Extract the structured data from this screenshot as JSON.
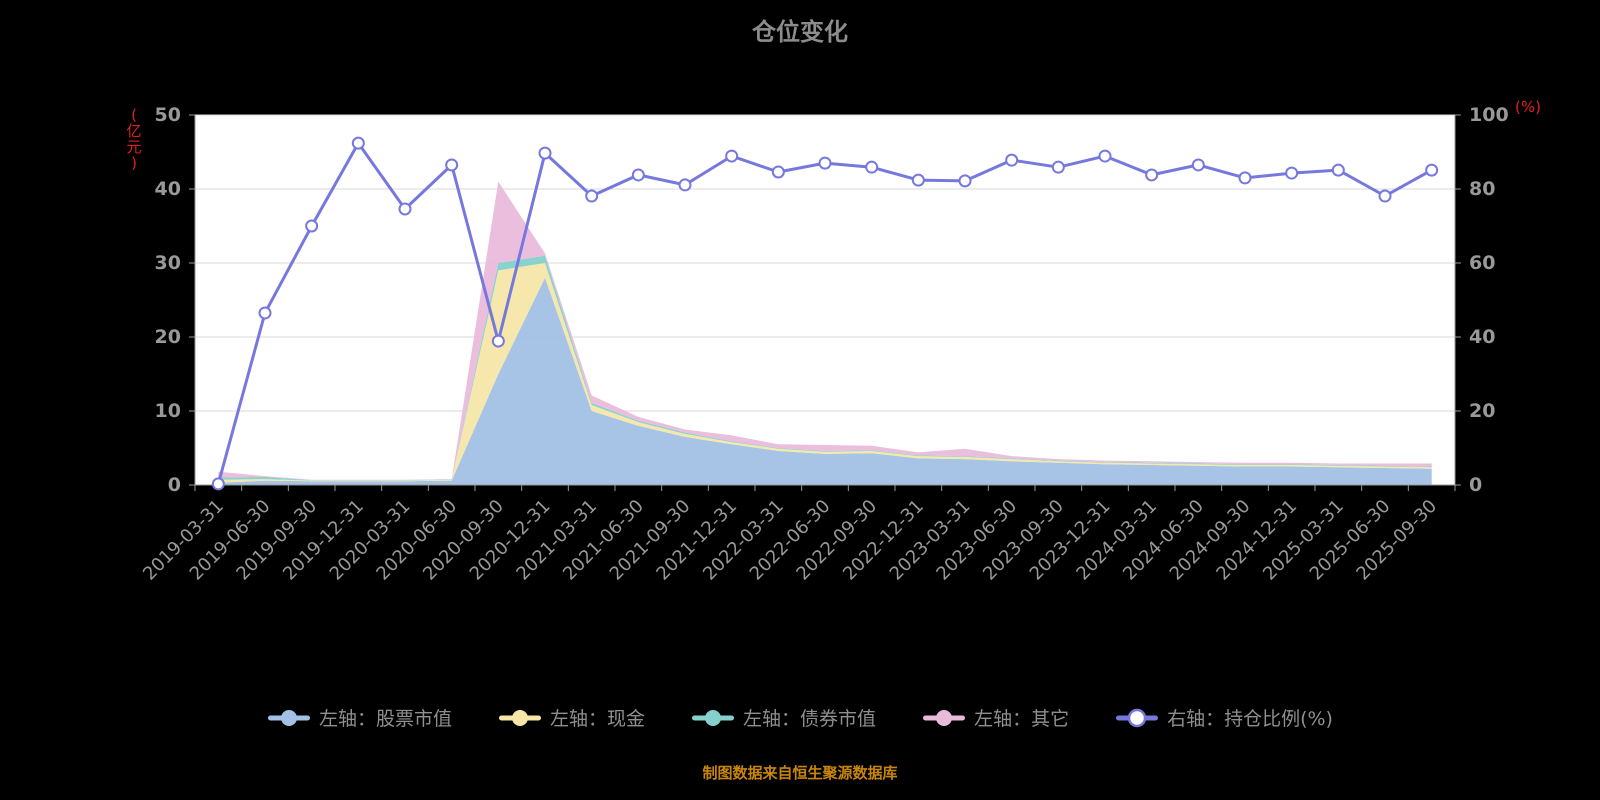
{
  "title": "仓位变化",
  "footer": {
    "source_note": "制图数据来自恒生聚源数据库"
  },
  "colors": {
    "background": "#000000",
    "plot_background": "#ffffff",
    "gridline": "#d9d9d9",
    "axis_line": "#999999",
    "tick_label": "#999999",
    "axis_unit": "#e02020",
    "title_text": "#8c8c8c",
    "legend_text": "#8f8f8f",
    "footer_text": "#c8860a"
  },
  "chart_data": {
    "type": "area",
    "title": "仓位变化",
    "grid": true,
    "legend_position": "bottom",
    "categories": [
      "2019-03-31",
      "2019-06-30",
      "2019-09-30",
      "2019-12-31",
      "2020-03-31",
      "2020-06-30",
      "2020-09-30",
      "2020-12-31",
      "2021-03-31",
      "2021-06-30",
      "2021-09-30",
      "2021-12-31",
      "2022-03-31",
      "2022-06-30",
      "2022-09-30",
      "2022-12-31",
      "2023-03-31",
      "2023-06-30",
      "2023-09-30",
      "2023-12-31",
      "2024-03-31",
      "2024-06-30",
      "2024-09-30",
      "2024-12-31",
      "2025-03-31",
      "2025-06-30",
      "2025-09-30"
    ],
    "left_axis": {
      "unit": "(亿元)",
      "min": 0,
      "max": 50,
      "ticks": [
        0,
        10,
        20,
        30,
        40,
        50
      ]
    },
    "right_axis": {
      "unit": "(%)",
      "min": 0,
      "max": 100,
      "ticks": [
        0,
        20,
        40,
        60,
        80,
        100
      ]
    },
    "series": [
      {
        "name": "左轴：股票市值",
        "type": "area-stacked",
        "axis": "left",
        "color": "#a2c1e5",
        "values": [
          0.3,
          0.6,
          0.5,
          0.5,
          0.5,
          0.6,
          15,
          28,
          10,
          8,
          6.5,
          5.5,
          4.6,
          4.2,
          4.3,
          3.6,
          3.5,
          3.2,
          3,
          2.8,
          2.7,
          2.6,
          2.5,
          2.5,
          2.4,
          2.3,
          2.2
        ]
      },
      {
        "name": "左轴：现金",
        "type": "area-stacked",
        "axis": "left",
        "color": "#f6e7a8",
        "values": [
          0.4,
          0.2,
          0.1,
          0.1,
          0.1,
          0.1,
          14,
          2,
          0.8,
          0.5,
          0.4,
          0.3,
          0.3,
          0.3,
          0.3,
          0.3,
          0.3,
          0.3,
          0.2,
          0.2,
          0.2,
          0.2,
          0.2,
          0.2,
          0.2,
          0.2,
          0.2
        ]
      },
      {
        "name": "左轴：债券市值",
        "type": "area-stacked",
        "axis": "left",
        "color": "#85d0cc",
        "values": [
          0.3,
          0.3,
          0.05,
          0.05,
          0.05,
          0.05,
          1,
          1,
          0.3,
          0.2,
          0.2,
          0.1,
          0.1,
          0.1,
          0.1,
          0.1,
          0.1,
          0.1,
          0.1,
          0.1,
          0.1,
          0.1,
          0.1,
          0.1,
          0.1,
          0.1,
          0.1
        ]
      },
      {
        "name": "左轴：其它",
        "type": "area-stacked",
        "axis": "left",
        "color": "#e9bada",
        "values": [
          0.8,
          0.1,
          0.05,
          0.05,
          0.05,
          0.05,
          11,
          0.3,
          1,
          0.5,
          0.4,
          0.8,
          0.5,
          0.8,
          0.6,
          0.4,
          1,
          0.3,
          0.2,
          0.2,
          0.2,
          0.2,
          0.2,
          0.2,
          0.2,
          0.3,
          0.4
        ]
      },
      {
        "name": "右轴：持仓比例(%)",
        "type": "line",
        "axis": "right",
        "color": "#7678dd",
        "marker": "circle-white",
        "values": [
          0.3,
          46.5,
          70,
          92.4,
          74.6,
          86.5,
          38.9,
          89.7,
          78.1,
          83.8,
          81.1,
          88.9,
          84.6,
          87,
          85.9,
          82.4,
          82.2,
          87.8,
          85.9,
          88.9,
          83.8,
          86.5,
          83,
          84.3,
          85.1,
          78.1,
          85.1
        ]
      }
    ],
    "legend": [
      {
        "label": "左轴：股票市值",
        "color": "#a2c1e5",
        "marker": "solid"
      },
      {
        "label": "左轴：现金",
        "color": "#f6e7a8",
        "marker": "solid"
      },
      {
        "label": "左轴：债券市值",
        "color": "#85d0cc",
        "marker": "solid"
      },
      {
        "label": "左轴：其它",
        "color": "#e9bada",
        "marker": "solid"
      },
      {
        "label": "右轴：持仓比例(%)",
        "color": "#7678dd",
        "marker": "hollow"
      }
    ]
  }
}
